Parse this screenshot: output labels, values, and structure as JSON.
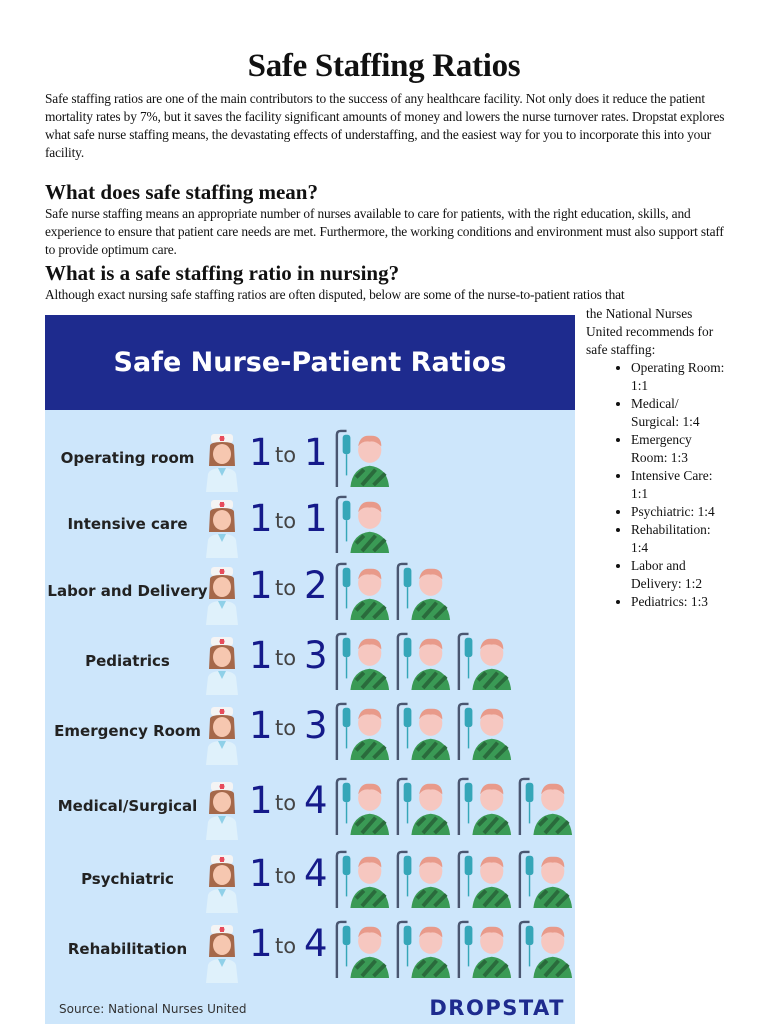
{
  "title": "Safe Staffing Ratios",
  "intro": "Safe staffing ratios are one of the main contributors to the success of any healthcare facility. Not only does it reduce the patient mortality rates by 7%, but it saves the facility significant amounts of money and lowers the nurse turnover rates. Dropstat explores what safe nurse staffing means, the devastating effects of understaffing, and the easiest way for you to incorporate this into your facility.",
  "section1": {
    "heading": "What does safe staffing mean?",
    "body": "Safe nurse staffing means an appropriate number of nurses available to care for patients, with the right education, skills, and experience to ensure that patient care needs are met. Furthermore, the working conditions and environment must also support staff to provide optimum care."
  },
  "section2": {
    "heading": "What is a safe staffing ratio in nursing?",
    "body_line1": "Although exact nursing safe staffing ratios are often disputed, below are some of the nurse-to-patient ratios that",
    "body_cont": "the National Nurses United recommends for safe staffing:",
    "list": [
      "Operating Room: 1:1",
      "Medical/ Surgical: 1:4",
      "Emergency Room: 1:3",
      "Intensive Care: 1:1",
      "Psychiatric: 1:4",
      "Rehabilitation: 1:4",
      "Labor and Delivery: 1:2",
      "Pediatrics: 1:3"
    ]
  },
  "infographic": {
    "title": "Safe Nurse-Patient Ratios",
    "to_label": "to",
    "source": "Source: National Nurses United",
    "logo": "DROPSTAT",
    "rows": [
      {
        "label": "Operating room",
        "nurses": "1",
        "patients": "1"
      },
      {
        "label": "Intensive care",
        "nurses": "1",
        "patients": "1"
      },
      {
        "label": "Labor and Delivery",
        "nurses": "1",
        "patients": "2"
      },
      {
        "label": "Pediatrics",
        "nurses": "1",
        "patients": "3"
      },
      {
        "label": "Emergency Room",
        "nurses": "1",
        "patients": "3"
      },
      {
        "label": "Medical/Surgical",
        "nurses": "1",
        "patients": "4"
      },
      {
        "label": "Psychiatric",
        "nurses": "1",
        "patients": "4"
      },
      {
        "label": "Rehabilitation",
        "nurses": "1",
        "patients": "4"
      }
    ],
    "colors": {
      "header": "#1e2b8e",
      "background": "#cde6fb",
      "numbers": "#151a8a"
    }
  }
}
